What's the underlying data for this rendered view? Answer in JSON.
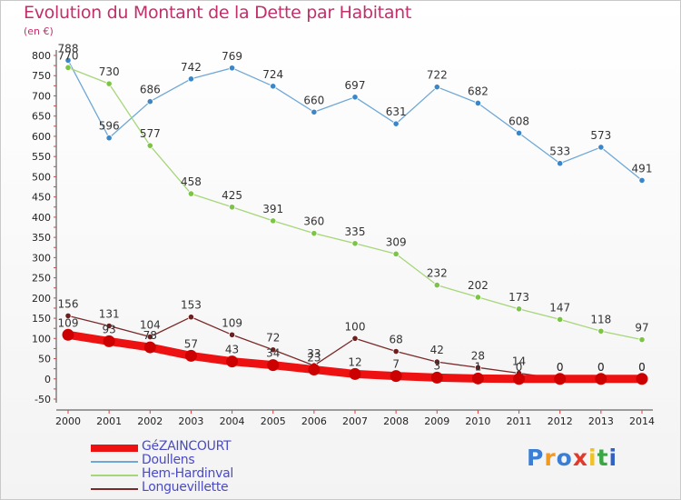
{
  "title": "Evolution du Montant de la Dette par Habitant",
  "subtitle": "(en €)",
  "logo": {
    "text": "Proxiti",
    "colors": [
      "#3a7fd5",
      "#f29a1f",
      "#3a7fd5",
      "#e23a2a",
      "#f2c21f",
      "#38a843",
      "#2f62c9"
    ]
  },
  "chart_data": {
    "type": "line",
    "x": [
      2000,
      2001,
      2002,
      2003,
      2004,
      2005,
      2006,
      2007,
      2008,
      2009,
      2010,
      2011,
      2012,
      2013,
      2014
    ],
    "ylim": [
      -50,
      800
    ],
    "yticks": [
      -50,
      0,
      50,
      100,
      150,
      200,
      250,
      300,
      350,
      400,
      450,
      500,
      550,
      600,
      650,
      700,
      750,
      800
    ],
    "grid": false,
    "legend": "bottom-left",
    "series": [
      {
        "name": "Doullens",
        "color": "#6fa7d6",
        "marker": "#3a86c8",
        "values": [
          788,
          596,
          686,
          742,
          769,
          724,
          660,
          697,
          631,
          722,
          682,
          608,
          533,
          573,
          491
        ]
      },
      {
        "name": "Hem-Hardinval",
        "color": "#a6d67a",
        "marker": "#7cc443",
        "values": [
          770,
          730,
          577,
          458,
          425,
          391,
          360,
          335,
          309,
          232,
          202,
          173,
          147,
          118,
          97
        ]
      },
      {
        "name": "Longuevillette",
        "color": "#7a2a2a",
        "marker": "#6b1f1f",
        "values": [
          156,
          131,
          104,
          153,
          109,
          72,
          33,
          100,
          68,
          42,
          28,
          14,
          0,
          0,
          0
        ]
      },
      {
        "name": "GéZAINCOURT",
        "color": "#ee1111",
        "marker": "#cc0000",
        "values": [
          109,
          93,
          78,
          57,
          43,
          34,
          23,
          12,
          7,
          3,
          1,
          0,
          0,
          0,
          0
        ],
        "labels": [
          "109",
          "93",
          "78",
          "57",
          "43",
          "34",
          "23",
          "12",
          "7",
          "3",
          "1",
          "0",
          "0",
          "0",
          "0"
        ]
      }
    ]
  }
}
